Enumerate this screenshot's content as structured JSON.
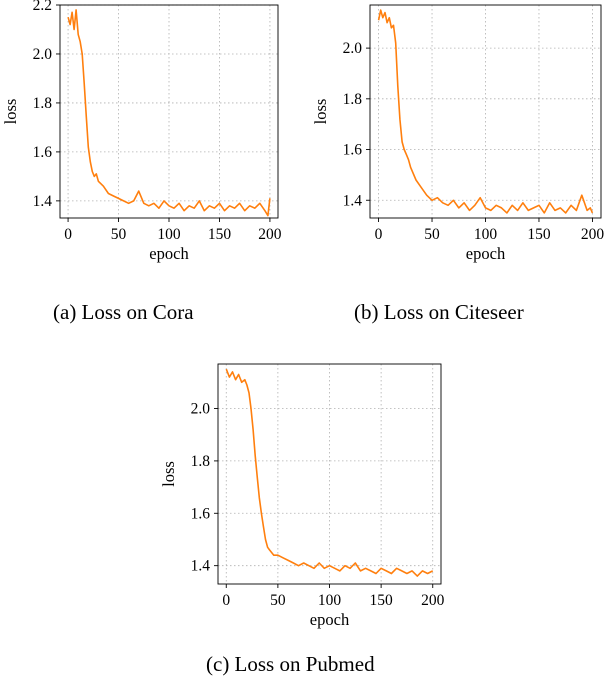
{
  "chart_data": [
    {
      "type": "line",
      "caption": "(a) Loss on Cora",
      "xlabel": "epoch",
      "ylabel": "loss",
      "xlim": [
        -8,
        208
      ],
      "ylim": [
        1.33,
        2.2
      ],
      "xticks": [
        0,
        50,
        100,
        150,
        200
      ],
      "yticks": [
        1.4,
        1.6,
        1.8,
        2.0,
        2.2
      ],
      "ytick_labels": [
        "1.4",
        "1.6",
        "1.8",
        "2.0",
        "2.2"
      ],
      "grid": true,
      "color": "#ff7f0e",
      "series": [
        {
          "x": [
            0,
            2,
            4,
            6,
            8,
            10,
            12,
            14,
            16,
            18,
            20,
            22,
            24,
            26,
            28,
            30,
            35,
            40,
            45,
            50,
            55,
            60,
            65,
            70,
            75,
            80,
            85,
            90,
            95,
            100,
            105,
            110,
            115,
            120,
            125,
            130,
            135,
            140,
            145,
            150,
            155,
            160,
            165,
            170,
            175,
            180,
            185,
            190,
            195,
            198,
            200
          ],
          "y": [
            2.15,
            2.12,
            2.17,
            2.1,
            2.18,
            2.08,
            2.05,
            2.0,
            1.88,
            1.75,
            1.62,
            1.56,
            1.52,
            1.5,
            1.51,
            1.48,
            1.46,
            1.43,
            1.42,
            1.41,
            1.4,
            1.39,
            1.4,
            1.44,
            1.39,
            1.38,
            1.39,
            1.37,
            1.4,
            1.38,
            1.37,
            1.39,
            1.36,
            1.38,
            1.37,
            1.4,
            1.36,
            1.38,
            1.37,
            1.39,
            1.36,
            1.38,
            1.37,
            1.39,
            1.36,
            1.38,
            1.37,
            1.39,
            1.36,
            1.34,
            1.41
          ]
        }
      ]
    },
    {
      "type": "line",
      "caption": "(b) Loss on Citeseer",
      "xlabel": "epoch",
      "ylabel": "loss",
      "xlim": [
        -8,
        208
      ],
      "ylim": [
        1.33,
        2.17
      ],
      "xticks": [
        0,
        50,
        100,
        150,
        200
      ],
      "yticks": [
        1.4,
        1.6,
        1.8,
        2.0
      ],
      "ytick_labels": [
        "1.4",
        "1.6",
        "1.8",
        "2.0"
      ],
      "grid": true,
      "color": "#ff7f0e",
      "series": [
        {
          "x": [
            0,
            2,
            4,
            6,
            8,
            10,
            12,
            14,
            16,
            18,
            20,
            22,
            24,
            26,
            28,
            30,
            35,
            40,
            45,
            50,
            55,
            60,
            65,
            70,
            75,
            80,
            85,
            90,
            95,
            100,
            105,
            110,
            115,
            120,
            125,
            130,
            135,
            140,
            145,
            150,
            155,
            160,
            165,
            170,
            175,
            180,
            185,
            190,
            195,
            198,
            200
          ],
          "y": [
            2.11,
            2.15,
            2.12,
            2.14,
            2.1,
            2.12,
            2.08,
            2.09,
            2.02,
            1.85,
            1.72,
            1.63,
            1.6,
            1.58,
            1.56,
            1.53,
            1.48,
            1.45,
            1.42,
            1.4,
            1.41,
            1.39,
            1.38,
            1.4,
            1.37,
            1.39,
            1.36,
            1.38,
            1.41,
            1.37,
            1.36,
            1.38,
            1.37,
            1.35,
            1.38,
            1.36,
            1.39,
            1.36,
            1.37,
            1.38,
            1.35,
            1.39,
            1.36,
            1.37,
            1.35,
            1.38,
            1.36,
            1.42,
            1.36,
            1.37,
            1.35
          ]
        }
      ]
    },
    {
      "type": "line",
      "caption": "(c) Loss on Pubmed",
      "xlabel": "epoch",
      "ylabel": "loss",
      "xlim": [
        -8,
        208
      ],
      "ylim": [
        1.33,
        2.17
      ],
      "xticks": [
        0,
        50,
        100,
        150,
        200
      ],
      "yticks": [
        1.4,
        1.6,
        1.8,
        2.0
      ],
      "ytick_labels": [
        "1.4",
        "1.6",
        "1.8",
        "2.0"
      ],
      "grid": true,
      "color": "#ff7f0e",
      "series": [
        {
          "x": [
            0,
            3,
            6,
            9,
            12,
            15,
            18,
            20,
            22,
            24,
            26,
            28,
            30,
            32,
            34,
            36,
            38,
            40,
            42,
            44,
            46,
            50,
            55,
            60,
            65,
            70,
            75,
            80,
            85,
            90,
            95,
            100,
            105,
            110,
            115,
            120,
            125,
            130,
            135,
            140,
            145,
            150,
            155,
            160,
            165,
            170,
            175,
            180,
            185,
            190,
            195,
            200
          ],
          "y": [
            2.15,
            2.12,
            2.14,
            2.11,
            2.13,
            2.1,
            2.11,
            2.09,
            2.06,
            2.0,
            1.92,
            1.82,
            1.74,
            1.66,
            1.6,
            1.55,
            1.5,
            1.47,
            1.46,
            1.45,
            1.44,
            1.44,
            1.43,
            1.42,
            1.41,
            1.4,
            1.41,
            1.4,
            1.39,
            1.41,
            1.39,
            1.4,
            1.39,
            1.38,
            1.4,
            1.39,
            1.41,
            1.38,
            1.39,
            1.38,
            1.37,
            1.39,
            1.38,
            1.37,
            1.39,
            1.38,
            1.37,
            1.38,
            1.36,
            1.38,
            1.37,
            1.38
          ]
        }
      ]
    }
  ]
}
